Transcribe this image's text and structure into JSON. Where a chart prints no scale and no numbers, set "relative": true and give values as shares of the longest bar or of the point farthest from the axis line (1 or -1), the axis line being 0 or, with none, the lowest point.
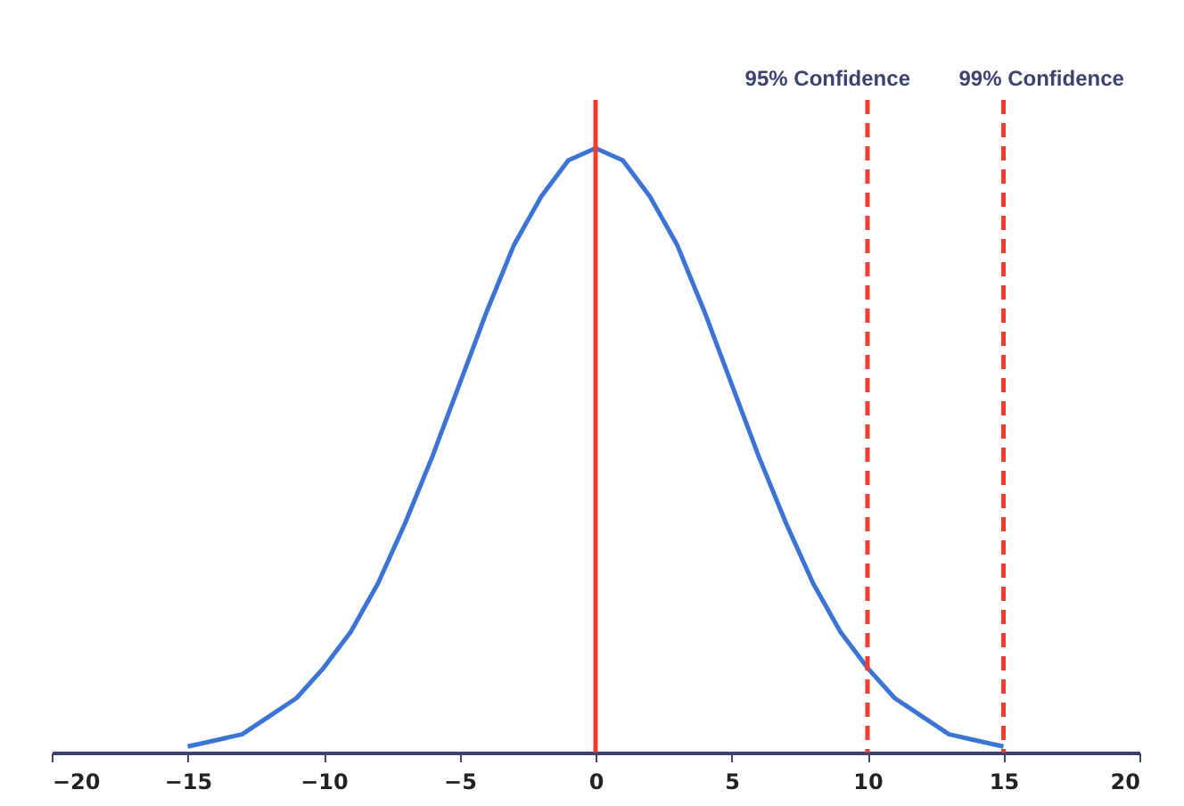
{
  "chart_data": {
    "type": "line",
    "relative": true,
    "x": [
      -15,
      -14,
      -13,
      -12,
      -11,
      -10,
      -9,
      -8,
      -7,
      -6,
      -5,
      -4,
      -3,
      -2,
      -1,
      0,
      1,
      2,
      3,
      4,
      5,
      6,
      7,
      8,
      9,
      10,
      11,
      12,
      13,
      14,
      15
    ],
    "series": [
      {
        "color": "#3b74d4",
        "values": [
          0.01,
          0.02,
          0.03,
          0.06,
          0.09,
          0.14,
          0.2,
          0.28,
          0.38,
          0.49,
          0.61,
          0.73,
          0.84,
          0.92,
          0.98,
          1,
          0.98,
          0.92,
          0.84,
          0.73,
          0.61,
          0.49,
          0.38,
          0.28,
          0.2,
          0.14,
          0.09,
          0.06,
          0.03,
          0.02,
          0.01
        ]
      }
    ],
    "xlim": [
      -20,
      20
    ],
    "xticks": [
      -20,
      -15,
      -10,
      -5,
      0,
      5,
      10,
      15,
      20
    ],
    "ref_lines": [
      {
        "axis": "x",
        "value": 0,
        "color": "#f03c2e",
        "line_style": "solid"
      },
      {
        "axis": "x",
        "value": 10,
        "label": "95% Confidence",
        "color": "#f03c2e",
        "line_style": "dashed"
      },
      {
        "axis": "x",
        "value": 15,
        "label": "99% Confidence",
        "color": "#f03c2e",
        "line_style": "dashed"
      }
    ],
    "grid": false
  }
}
